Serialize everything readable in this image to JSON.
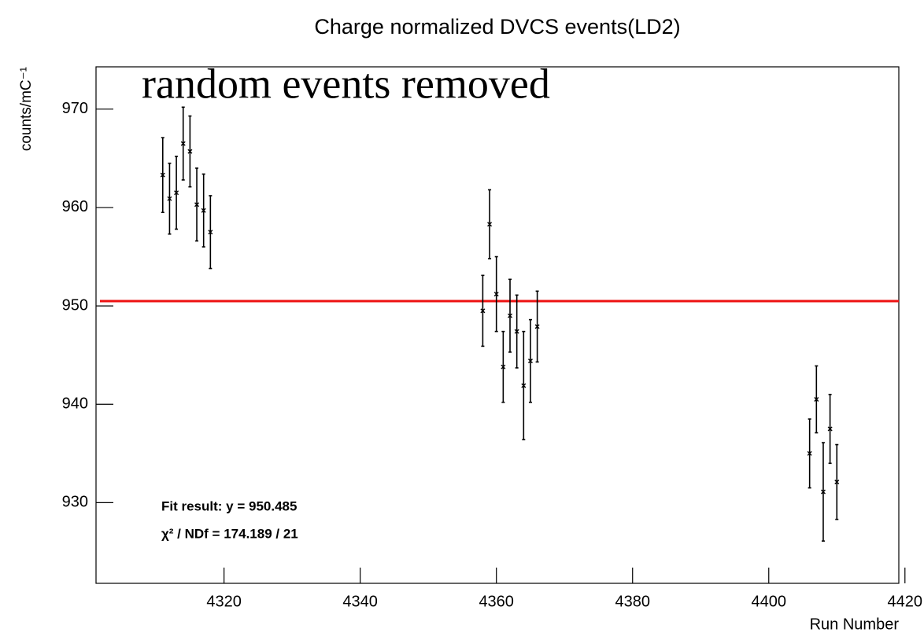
{
  "chart_data": {
    "type": "errorbar",
    "title": "Charge normalized DVCS events(LD2)",
    "x_label": "Run Number",
    "y_label": "counts/mC⁻¹",
    "annotation": "random events removed",
    "fit_label": "Fit result: y = 950.485",
    "chi2_label": "χ² / NDf = 174.189 / 21",
    "fit_value": 950.485,
    "fit_color": "#ee1111",
    "annotation_color": "#ee1111",
    "series": [
      {
        "color": "#000000",
        "x": [
          4311,
          4312,
          4313,
          4314,
          4315,
          4316,
          4317,
          4318,
          4358,
          4359,
          4360,
          4361,
          4362,
          4363,
          4364,
          4365,
          4366,
          4406,
          4407,
          4408,
          4409,
          4410
        ],
        "values": [
          963.3,
          960.9,
          961.5,
          966.5,
          965.7,
          960.3,
          959.7,
          957.5,
          949.5,
          958.3,
          951.2,
          943.8,
          949.0,
          947.4,
          941.9,
          944.4,
          947.9,
          935.0,
          940.5,
          931.1,
          937.5,
          932.1
        ],
        "errors": [
          3.8,
          3.6,
          3.7,
          3.7,
          3.6,
          3.7,
          3.7,
          3.7,
          3.6,
          3.5,
          3.8,
          3.6,
          3.7,
          3.7,
          5.5,
          4.2,
          3.6,
          3.5,
          3.4,
          5.0,
          3.5,
          3.8
        ]
      }
    ],
    "xlim": [
      4301.2,
      4419.1
    ],
    "xticks": [
      4320,
      4340,
      4360,
      4380,
      4400,
      4420
    ],
    "ylim": [
      921.8,
      974.3
    ],
    "yticks": [
      930,
      940,
      950,
      960,
      970
    ],
    "grid": false
  }
}
